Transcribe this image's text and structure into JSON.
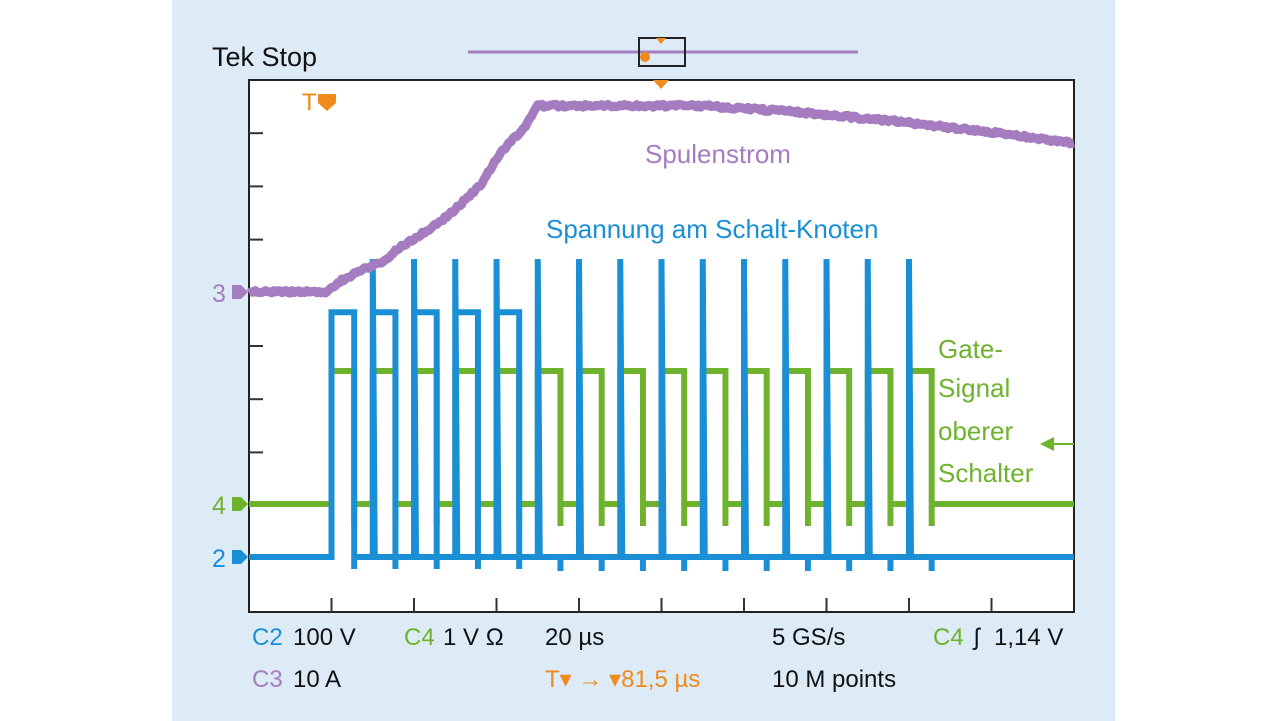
{
  "header": {
    "status": "Tek Stop",
    "trigger_marker": "T"
  },
  "colors": {
    "ch2": "#1a8fd6",
    "ch3": "#a57cc0",
    "ch4": "#6fb22e",
    "trigger": "#f08a1c",
    "background": "#dcebf5"
  },
  "chart_data": {
    "type": "line",
    "title": "Tek Stop",
    "x_unit": "µs",
    "xlim": [
      0,
      200
    ],
    "x_divisions": 10,
    "y_divisions": 10,
    "grid": false,
    "series": [
      {
        "name": "Spulenstrom",
        "channel": "3",
        "unit": "A",
        "scale_per_div": 10,
        "color": "#a57cc0",
        "points": [
          [
            0,
            0
          ],
          [
            18.5,
            0
          ],
          [
            22,
            2
          ],
          [
            27,
            4
          ],
          [
            32,
            5.5
          ],
          [
            36,
            8
          ],
          [
            40,
            10
          ],
          [
            46,
            13
          ],
          [
            50,
            15.5
          ],
          [
            56,
            20
          ],
          [
            60,
            25
          ],
          [
            63,
            28
          ],
          [
            66,
            30
          ],
          [
            70,
            35
          ],
          [
            90,
            35
          ],
          [
            110,
            35
          ],
          [
            130,
            34
          ],
          [
            158,
            32
          ],
          [
            180,
            30
          ],
          [
            200,
            28
          ]
        ]
      },
      {
        "name": "Spannung am Schalt-Knoten",
        "channel": "2",
        "unit": "V",
        "scale_per_div": 100,
        "color": "#1a8fd6",
        "pulse_train": {
          "start": 20,
          "period": 10,
          "count": 15,
          "low": 0,
          "high_first_pulses": 460,
          "high_pulse_count": 5,
          "spike_peak": 560
        }
      },
      {
        "name": "Gate-Signal oberer Schalter",
        "channel": "4",
        "unit": "V",
        "scale_per_div": 1,
        "color": "#6fb22e",
        "pulse_train": {
          "start": 20,
          "period": 10,
          "count": 15,
          "width": 5.5,
          "low": 0,
          "high": 2.5
        }
      }
    ],
    "annotations": {
      "spulenstrom": "Spulenstrom",
      "spannung": "Spannung am Schalt-Knoten",
      "gate": [
        "Gate-",
        "Signal",
        "oberer",
        "Schalter"
      ]
    },
    "channel_markers": {
      "ch3": "3",
      "ch4": "4",
      "ch2": "2"
    }
  },
  "readout": {
    "c2_label": "C2",
    "c2_scale": "100 V",
    "c3_label": "C3",
    "c3_scale": "10 A",
    "c4_label": "C4",
    "c4_scale": "1 V Ω",
    "timebase": "20 µs",
    "trigger_pos": "T▾ → ▾81,5 µs",
    "sample_rate": "5 GS/s",
    "record_length": "10 M points",
    "trig_channel": "C4",
    "trig_slope": "ʃ",
    "trig_level": "1,14 V"
  }
}
